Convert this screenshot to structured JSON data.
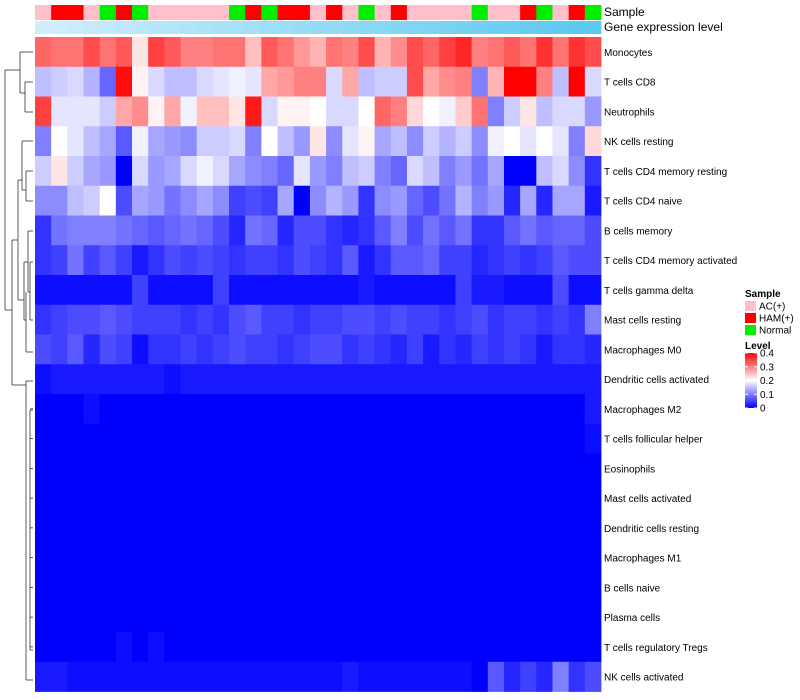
{
  "chart_data": {
    "type": "heatmap",
    "title": "",
    "annotation_labels": {
      "sample": "Sample",
      "gene_expression": "Gene expression level"
    },
    "legend": {
      "sample_title": "Sample",
      "sample_entries": [
        {
          "name": "AC(+)",
          "color": "#ffc0cb"
        },
        {
          "name": "HAM(+)",
          "color": "#ff0000"
        },
        {
          "name": "Normal",
          "color": "#00ee00"
        }
      ],
      "level_title": "Level",
      "level_ticks": [
        "0.4",
        "0.3",
        "0.2",
        "0.1",
        "0"
      ],
      "level_values": [
        0.4,
        0.3,
        0.2,
        0.1,
        0
      ],
      "placement": "right"
    },
    "color_scale": {
      "low": "#0000ff",
      "mid": "#ffffff",
      "high": "#ff0000",
      "min": 0,
      "mid_value": 0.2,
      "max": 0.4
    },
    "sample_codes": [
      "AC(+)",
      "HAM(+)",
      "Normal"
    ],
    "column_groups": [
      0,
      1,
      1,
      0,
      2,
      1,
      2,
      0,
      0,
      0,
      0,
      0,
      2,
      1,
      2,
      1,
      1,
      0,
      1,
      0,
      2,
      0,
      1,
      0,
      0,
      0,
      0,
      2,
      0,
      0,
      1,
      2,
      0,
      1,
      2
    ],
    "gene_expression_colors": {
      "start": "#cfeefc",
      "end": "#5bc8f0"
    },
    "rows": [
      "Monocytes",
      "T cells CD8",
      "Neutrophils",
      "NK cells resting",
      "T cells CD4 memory resting",
      "T cells CD4 naive",
      "B cells memory",
      "T cells CD4 memory activated",
      "T cells gamma delta",
      "Mast cells resting",
      "Macrophages M0",
      "Dendritic cells activated",
      "Macrophages M2",
      "T cells follicular helper",
      "Eosinophils",
      "Mast cells activated",
      "Dendritic cells resting",
      "Macrophages M1",
      "B cells naive",
      "Plasma cells",
      "T cells regulatory  Tregs",
      "NK cells activated"
    ],
    "values": [
      [
        0.32,
        0.31,
        0.31,
        0.34,
        0.31,
        0.33,
        0.22,
        0.35,
        0.33,
        0.3,
        0.3,
        0.31,
        0.31,
        0.25,
        0.33,
        0.31,
        0.28,
        0.26,
        0.31,
        0.3,
        0.34,
        0.26,
        0.29,
        0.34,
        0.32,
        0.35,
        0.37,
        0.3,
        0.31,
        0.33,
        0.31,
        0.36,
        0.31,
        0.36,
        0.34
      ],
      [
        0.15,
        0.16,
        0.17,
        0.14,
        0.08,
        0.39,
        0.21,
        0.17,
        0.15,
        0.15,
        0.17,
        0.18,
        0.19,
        0.18,
        0.27,
        0.28,
        0.3,
        0.3,
        0.17,
        0.27,
        0.15,
        0.16,
        0.16,
        0.34,
        0.27,
        0.29,
        0.3,
        0.1,
        0.26,
        0.4,
        0.4,
        0.3,
        0.15,
        0.4,
        0.17
      ],
      [
        0.35,
        0.18,
        0.18,
        0.18,
        0.16,
        0.27,
        0.29,
        0.21,
        0.27,
        0.19,
        0.25,
        0.25,
        0.22,
        0.38,
        0.17,
        0.21,
        0.21,
        0.2,
        0.17,
        0.17,
        0.2,
        0.32,
        0.3,
        0.23,
        0.2,
        0.19,
        0.24,
        0.31,
        0.1,
        0.16,
        0.22,
        0.15,
        0.17,
        0.17,
        0.12
      ],
      [
        0.1,
        0.2,
        0.18,
        0.15,
        0.13,
        0.07,
        0.19,
        0.13,
        0.12,
        0.11,
        0.16,
        0.16,
        0.17,
        0.1,
        0.2,
        0.15,
        0.12,
        0.22,
        0.11,
        0.18,
        0.21,
        0.13,
        0.15,
        0.11,
        0.16,
        0.14,
        0.16,
        0.11,
        0.19,
        0.2,
        0.18,
        0.2,
        0.18,
        0.1,
        0.23
      ],
      [
        0.16,
        0.22,
        0.16,
        0.13,
        0.12,
        0.0,
        0.17,
        0.12,
        0.13,
        0.17,
        0.19,
        0.17,
        0.13,
        0.11,
        0.1,
        0.08,
        0.18,
        0.12,
        0.1,
        0.15,
        0.16,
        0.1,
        0.08,
        0.17,
        0.15,
        0.1,
        0.12,
        0.09,
        0.13,
        0.0,
        0.0,
        0.15,
        0.17,
        0.11,
        0.04
      ],
      [
        0.11,
        0.11,
        0.15,
        0.16,
        0.2,
        0.06,
        0.13,
        0.12,
        0.09,
        0.11,
        0.13,
        0.11,
        0.05,
        0.06,
        0.05,
        0.13,
        0.0,
        0.11,
        0.14,
        0.12,
        0.04,
        0.11,
        0.12,
        0.08,
        0.06,
        0.09,
        0.14,
        0.1,
        0.12,
        0.03,
        0.13,
        0.03,
        0.13,
        0.13,
        0.02
      ],
      [
        0.04,
        0.09,
        0.1,
        0.1,
        0.1,
        0.09,
        0.08,
        0.07,
        0.08,
        0.09,
        0.08,
        0.06,
        0.03,
        0.09,
        0.08,
        0.03,
        0.06,
        0.06,
        0.04,
        0.03,
        0.04,
        0.07,
        0.1,
        0.06,
        0.09,
        0.07,
        0.09,
        0.04,
        0.04,
        0.07,
        0.09,
        0.07,
        0.08,
        0.08,
        0.06
      ],
      [
        0.04,
        0.05,
        0.09,
        0.05,
        0.07,
        0.05,
        0.02,
        0.04,
        0.06,
        0.05,
        0.06,
        0.05,
        0.04,
        0.05,
        0.05,
        0.04,
        0.06,
        0.05,
        0.04,
        0.07,
        0.02,
        0.04,
        0.07,
        0.07,
        0.08,
        0.05,
        0.05,
        0.03,
        0.04,
        0.05,
        0.04,
        0.05,
        0.07,
        0.06,
        0.06
      ],
      [
        0.01,
        0.01,
        0.01,
        0.01,
        0.01,
        0.01,
        0.05,
        0.01,
        0.01,
        0.01,
        0.01,
        0.05,
        0.01,
        0.01,
        0.01,
        0.01,
        0.01,
        0.01,
        0.01,
        0.01,
        0.02,
        0.01,
        0.01,
        0.01,
        0.01,
        0.01,
        0.05,
        0.02,
        0.02,
        0.01,
        0.01,
        0.01,
        0.06,
        0.01,
        0.01
      ],
      [
        0.04,
        0.05,
        0.06,
        0.06,
        0.07,
        0.06,
        0.05,
        0.05,
        0.05,
        0.04,
        0.05,
        0.04,
        0.06,
        0.07,
        0.05,
        0.05,
        0.04,
        0.05,
        0.05,
        0.06,
        0.06,
        0.05,
        0.06,
        0.05,
        0.05,
        0.04,
        0.05,
        0.06,
        0.04,
        0.05,
        0.05,
        0.04,
        0.05,
        0.04,
        0.1
      ],
      [
        0.06,
        0.05,
        0.07,
        0.03,
        0.06,
        0.05,
        0.01,
        0.04,
        0.04,
        0.05,
        0.04,
        0.05,
        0.06,
        0.05,
        0.05,
        0.04,
        0.05,
        0.06,
        0.06,
        0.04,
        0.05,
        0.04,
        0.03,
        0.05,
        0.02,
        0.04,
        0.03,
        0.05,
        0.04,
        0.05,
        0.04,
        0.02,
        0.04,
        0.04,
        0.03
      ],
      [
        0.01,
        0.02,
        0.02,
        0.02,
        0.02,
        0.02,
        0.02,
        0.02,
        0.01,
        0.02,
        0.02,
        0.02,
        0.02,
        0.02,
        0.02,
        0.02,
        0.02,
        0.02,
        0.02,
        0.02,
        0.02,
        0.02,
        0.02,
        0.02,
        0.02,
        0.02,
        0.02,
        0.02,
        0.02,
        0.02,
        0.02,
        0.02,
        0.02,
        0.02,
        0.02
      ],
      [
        0.0,
        0.0,
        0.0,
        0.01,
        0.0,
        0.0,
        0.0,
        0.0,
        0.0,
        0.0,
        0.0,
        0.0,
        0.0,
        0.0,
        0.0,
        0.0,
        0.0,
        0.0,
        0.0,
        0.0,
        0.0,
        0.0,
        0.0,
        0.0,
        0.0,
        0.0,
        0.0,
        0.0,
        0.0,
        0.0,
        0.0,
        0.0,
        0.0,
        0.0,
        0.02
      ],
      [
        0.0,
        0.0,
        0.0,
        0.0,
        0.0,
        0.0,
        0.0,
        0.0,
        0.0,
        0.0,
        0.0,
        0.0,
        0.0,
        0.0,
        0.0,
        0.0,
        0.0,
        0.0,
        0.0,
        0.0,
        0.0,
        0.0,
        0.0,
        0.0,
        0.0,
        0.0,
        0.0,
        0.0,
        0.0,
        0.0,
        0.0,
        0.0,
        0.0,
        0.0,
        0.01
      ],
      [
        0.0,
        0.0,
        0.0,
        0.0,
        0.0,
        0.0,
        0.0,
        0.0,
        0.0,
        0.0,
        0.0,
        0.0,
        0.0,
        0.0,
        0.0,
        0.0,
        0.0,
        0.0,
        0.0,
        0.0,
        0.0,
        0.0,
        0.0,
        0.0,
        0.0,
        0.0,
        0.0,
        0.0,
        0.0,
        0.0,
        0.0,
        0.0,
        0.0,
        0.0,
        0.0
      ],
      [
        0.0,
        0.0,
        0.0,
        0.0,
        0.0,
        0.0,
        0.0,
        0.0,
        0.0,
        0.0,
        0.0,
        0.0,
        0.0,
        0.0,
        0.0,
        0.0,
        0.0,
        0.0,
        0.0,
        0.0,
        0.0,
        0.0,
        0.0,
        0.0,
        0.0,
        0.0,
        0.0,
        0.0,
        0.0,
        0.0,
        0.0,
        0.0,
        0.0,
        0.0,
        0.0
      ],
      [
        0.0,
        0.0,
        0.0,
        0.0,
        0.0,
        0.0,
        0.0,
        0.0,
        0.0,
        0.0,
        0.0,
        0.0,
        0.0,
        0.0,
        0.0,
        0.0,
        0.0,
        0.0,
        0.0,
        0.0,
        0.0,
        0.0,
        0.0,
        0.0,
        0.0,
        0.0,
        0.0,
        0.0,
        0.0,
        0.0,
        0.0,
        0.0,
        0.0,
        0.0,
        0.0
      ],
      [
        0.0,
        0.0,
        0.0,
        0.0,
        0.0,
        0.0,
        0.0,
        0.0,
        0.0,
        0.0,
        0.0,
        0.0,
        0.0,
        0.0,
        0.0,
        0.0,
        0.0,
        0.0,
        0.0,
        0.0,
        0.0,
        0.0,
        0.0,
        0.0,
        0.0,
        0.0,
        0.0,
        0.0,
        0.0,
        0.0,
        0.0,
        0.0,
        0.0,
        0.0,
        0.0
      ],
      [
        0.0,
        0.0,
        0.0,
        0.0,
        0.0,
        0.0,
        0.0,
        0.0,
        0.0,
        0.0,
        0.0,
        0.0,
        0.0,
        0.0,
        0.0,
        0.0,
        0.0,
        0.0,
        0.0,
        0.0,
        0.0,
        0.0,
        0.0,
        0.0,
        0.0,
        0.0,
        0.0,
        0.0,
        0.0,
        0.0,
        0.0,
        0.0,
        0.0,
        0.0,
        0.0
      ],
      [
        0.0,
        0.0,
        0.0,
        0.0,
        0.0,
        0.0,
        0.0,
        0.0,
        0.0,
        0.0,
        0.0,
        0.0,
        0.0,
        0.0,
        0.0,
        0.0,
        0.0,
        0.0,
        0.0,
        0.0,
        0.0,
        0.0,
        0.0,
        0.0,
        0.0,
        0.0,
        0.0,
        0.0,
        0.0,
        0.0,
        0.0,
        0.0,
        0.0,
        0.0,
        0.0
      ],
      [
        0.0,
        0.0,
        0.0,
        0.0,
        0.0,
        0.01,
        0.0,
        0.01,
        0.0,
        0.0,
        0.0,
        0.0,
        0.0,
        0.0,
        0.0,
        0.0,
        0.0,
        0.0,
        0.0,
        0.0,
        0.0,
        0.0,
        0.0,
        0.0,
        0.0,
        0.0,
        0.0,
        0.0,
        0.0,
        0.0,
        0.0,
        0.0,
        0.0,
        0.0,
        0.0
      ],
      [
        0.02,
        0.02,
        0.01,
        0.01,
        0.01,
        0.01,
        0.01,
        0.01,
        0.01,
        0.01,
        0.01,
        0.01,
        0.01,
        0.01,
        0.01,
        0.01,
        0.01,
        0.01,
        0.01,
        0.02,
        0.01,
        0.01,
        0.01,
        0.01,
        0.01,
        0.01,
        0.01,
        0.0,
        0.07,
        0.03,
        0.05,
        0.03,
        0.1,
        0.04,
        0.06
      ]
    ]
  }
}
